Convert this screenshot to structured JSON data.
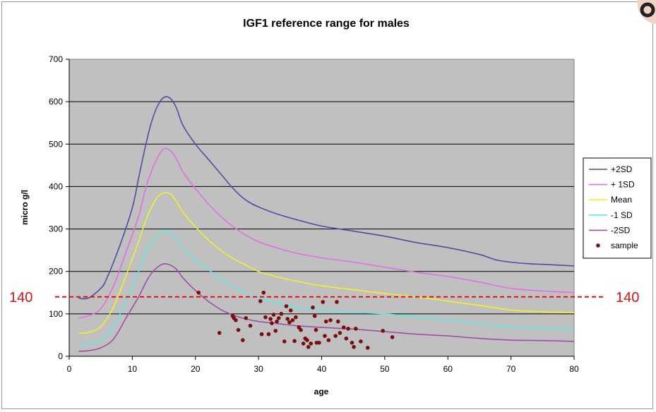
{
  "chart_data": {
    "type": "line",
    "title": "IGF1 reference range for males",
    "xlabel": "age",
    "ylabel": "micro g/l",
    "xlim": [
      0,
      80
    ],
    "ylim": [
      0,
      700
    ],
    "xticks": [
      0,
      10,
      20,
      30,
      40,
      50,
      60,
      70,
      80
    ],
    "yticks": [
      0,
      100,
      200,
      300,
      400,
      500,
      600,
      700
    ],
    "grid": "horizontal",
    "plot_background": "#c0c0c0",
    "legend_position": "right",
    "series": [
      {
        "name": "+2SD",
        "color": "#4b4fa0",
        "points": [
          [
            1.5,
            137
          ],
          [
            3,
            137
          ],
          [
            5,
            160
          ],
          [
            6,
            185
          ],
          [
            8,
            260
          ],
          [
            10,
            350
          ],
          [
            11,
            420
          ],
          [
            12,
            490
          ],
          [
            13,
            550
          ],
          [
            14,
            590
          ],
          [
            15,
            610
          ],
          [
            16,
            608
          ],
          [
            17,
            585
          ],
          [
            18,
            545
          ],
          [
            20,
            500
          ],
          [
            22,
            465
          ],
          [
            24,
            430
          ],
          [
            26,
            395
          ],
          [
            28,
            368
          ],
          [
            30,
            352
          ],
          [
            33,
            335
          ],
          [
            36,
            322
          ],
          [
            40,
            307
          ],
          [
            45,
            295
          ],
          [
            50,
            283
          ],
          [
            55,
            268
          ],
          [
            60,
            256
          ],
          [
            65,
            240
          ],
          [
            68,
            226
          ],
          [
            72,
            219
          ],
          [
            76,
            216
          ],
          [
            80,
            213
          ]
        ]
      },
      {
        "name": "+ 1SD",
        "color": "#e36ee3",
        "points": [
          [
            1.5,
            90
          ],
          [
            3,
            95
          ],
          [
            5,
            112
          ],
          [
            7,
            165
          ],
          [
            9,
            245
          ],
          [
            11,
            330
          ],
          [
            12,
            390
          ],
          [
            13,
            435
          ],
          [
            14,
            468
          ],
          [
            15,
            489
          ],
          [
            16,
            485
          ],
          [
            17,
            465
          ],
          [
            18,
            435
          ],
          [
            20,
            395
          ],
          [
            22,
            360
          ],
          [
            24,
            330
          ],
          [
            26,
            305
          ],
          [
            28,
            285
          ],
          [
            30,
            270
          ],
          [
            33,
            255
          ],
          [
            36,
            243
          ],
          [
            40,
            232
          ],
          [
            45,
            222
          ],
          [
            50,
            210
          ],
          [
            55,
            198
          ],
          [
            60,
            188
          ],
          [
            65,
            175
          ],
          [
            70,
            160
          ],
          [
            75,
            154
          ],
          [
            80,
            150
          ]
        ]
      },
      {
        "name": "Mean",
        "color": "#f2ef2a",
        "points": [
          [
            1.5,
            55
          ],
          [
            3,
            56
          ],
          [
            5,
            70
          ],
          [
            7,
            115
          ],
          [
            9,
            190
          ],
          [
            11,
            270
          ],
          [
            12,
            315
          ],
          [
            13,
            350
          ],
          [
            14,
            375
          ],
          [
            15,
            385
          ],
          [
            16,
            383
          ],
          [
            17,
            365
          ],
          [
            18,
            340
          ],
          [
            20,
            305
          ],
          [
            22,
            275
          ],
          [
            24,
            250
          ],
          [
            26,
            230
          ],
          [
            28,
            215
          ],
          [
            30,
            200
          ],
          [
            33,
            187
          ],
          [
            36,
            177
          ],
          [
            40,
            166
          ],
          [
            45,
            157
          ],
          [
            50,
            148
          ],
          [
            55,
            140
          ],
          [
            60,
            130
          ],
          [
            65,
            120
          ],
          [
            70,
            109
          ],
          [
            75,
            105
          ],
          [
            80,
            103
          ]
        ]
      },
      {
        "name": "-1 SD",
        "color": "#5ee8e8",
        "points": [
          [
            1.5,
            27
          ],
          [
            3,
            28
          ],
          [
            5,
            38
          ],
          [
            7,
            70
          ],
          [
            9,
            130
          ],
          [
            11,
            200
          ],
          [
            12,
            240
          ],
          [
            13,
            268
          ],
          [
            14,
            286
          ],
          [
            15,
            294
          ],
          [
            16,
            290
          ],
          [
            17,
            275
          ],
          [
            18,
            255
          ],
          [
            20,
            228
          ],
          [
            22,
            205
          ],
          [
            24,
            183
          ],
          [
            26,
            165
          ],
          [
            28,
            150
          ],
          [
            30,
            138
          ],
          [
            33,
            125
          ],
          [
            36,
            116
          ],
          [
            40,
            109
          ],
          [
            45,
            104
          ],
          [
            50,
            100
          ],
          [
            55,
            93
          ],
          [
            60,
            85
          ],
          [
            65,
            77
          ],
          [
            70,
            69
          ],
          [
            75,
            66
          ],
          [
            80,
            63
          ]
        ]
      },
      {
        "name": "-2SD",
        "color": "#9b4fa7",
        "points": [
          [
            1.5,
            12
          ],
          [
            3,
            13
          ],
          [
            5,
            20
          ],
          [
            7,
            40
          ],
          [
            9,
            90
          ],
          [
            11,
            140
          ],
          [
            12,
            170
          ],
          [
            13,
            195
          ],
          [
            14,
            210
          ],
          [
            15,
            218
          ],
          [
            16,
            215
          ],
          [
            17,
            205
          ],
          [
            18,
            185
          ],
          [
            20,
            155
          ],
          [
            22,
            130
          ],
          [
            24,
            110
          ],
          [
            26,
            97
          ],
          [
            28,
            88
          ],
          [
            30,
            82
          ],
          [
            33,
            77
          ],
          [
            36,
            72
          ],
          [
            40,
            68
          ],
          [
            45,
            64
          ],
          [
            50,
            58
          ],
          [
            55,
            52
          ],
          [
            60,
            48
          ],
          [
            65,
            42
          ],
          [
            70,
            38
          ],
          [
            75,
            37
          ],
          [
            80,
            35
          ]
        ]
      }
    ],
    "scatter": {
      "name": "sample",
      "color": "#7a0d0d",
      "points": [
        [
          20.5,
          150
        ],
        [
          23.8,
          55
        ],
        [
          25.9,
          95
        ],
        [
          26.1,
          90
        ],
        [
          26.4,
          85
        ],
        [
          26.8,
          62
        ],
        [
          27.5,
          38
        ],
        [
          28,
          90
        ],
        [
          28.7,
          72
        ],
        [
          30.3,
          130
        ],
        [
          30.5,
          52
        ],
        [
          30.8,
          150
        ],
        [
          31.1,
          92
        ],
        [
          31.6,
          52
        ],
        [
          31.9,
          88
        ],
        [
          32.1,
          78
        ],
        [
          32.4,
          98
        ],
        [
          32.7,
          60
        ],
        [
          32.9,
          82
        ],
        [
          33.2,
          90
        ],
        [
          33.6,
          100
        ],
        [
          34.1,
          35
        ],
        [
          34.4,
          118
        ],
        [
          34.6,
          88
        ],
        [
          34.9,
          80
        ],
        [
          35.1,
          108
        ],
        [
          35.4,
          85
        ],
        [
          35.7,
          36
        ],
        [
          35.9,
          92
        ],
        [
          36.4,
          68
        ],
        [
          36.7,
          62
        ],
        [
          37.1,
          30
        ],
        [
          37.4,
          42
        ],
        [
          37.7,
          38
        ],
        [
          37.9,
          22
        ],
        [
          38.3,
          30
        ],
        [
          38.6,
          115
        ],
        [
          38.9,
          95
        ],
        [
          39.1,
          62
        ],
        [
          39.2,
          32
        ],
        [
          39.6,
          32
        ],
        [
          40.2,
          128
        ],
        [
          40.5,
          48
        ],
        [
          40.7,
          82
        ],
        [
          41.1,
          38
        ],
        [
          41.4,
          85
        ],
        [
          42.2,
          48
        ],
        [
          42.4,
          128
        ],
        [
          42.6,
          82
        ],
        [
          42.9,
          55
        ],
        [
          43.5,
          68
        ],
        [
          43.9,
          42
        ],
        [
          44.2,
          65
        ],
        [
          44.8,
          32
        ],
        [
          45.1,
          22
        ],
        [
          45.4,
          65
        ],
        [
          46.2,
          35
        ],
        [
          47.3,
          20
        ],
        [
          49.7,
          60
        ],
        [
          51.2,
          45
        ]
      ]
    },
    "annotations": [
      {
        "type": "horizontal-line",
        "y": 140,
        "color": "#e01010",
        "style": "dashed",
        "label_left": "140",
        "label_right": "140"
      }
    ]
  }
}
